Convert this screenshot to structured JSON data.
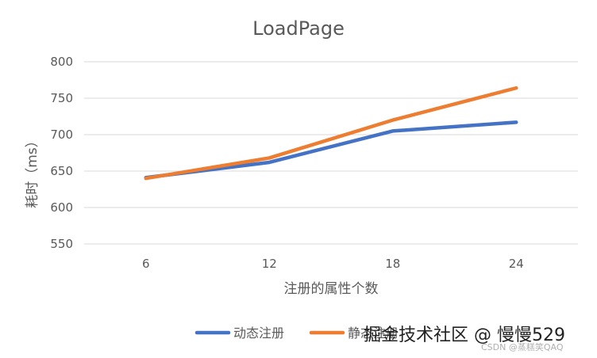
{
  "chart_data": {
    "type": "line",
    "title": "LoadPage",
    "ylabel": "耗时（ms）",
    "xlabel": "注册的属性个数",
    "categories": [
      "6",
      "12",
      "18",
      "24"
    ],
    "ylim": [
      550,
      800
    ],
    "yticks": [
      550,
      600,
      650,
      700,
      750,
      800
    ],
    "grid": true,
    "legend_position": "bottom",
    "series": [
      {
        "name": "动态注册",
        "color": "#4472c4",
        "values": [
          641,
          662,
          705,
          717
        ]
      },
      {
        "name": "静态注册",
        "color": "#ed7d31",
        "values": [
          640,
          668,
          720,
          764
        ]
      }
    ]
  },
  "watermark": {
    "main": "掘金技术社区 @ 慢慢529",
    "sub": "CSDN @蒸糕笑QAQ"
  }
}
